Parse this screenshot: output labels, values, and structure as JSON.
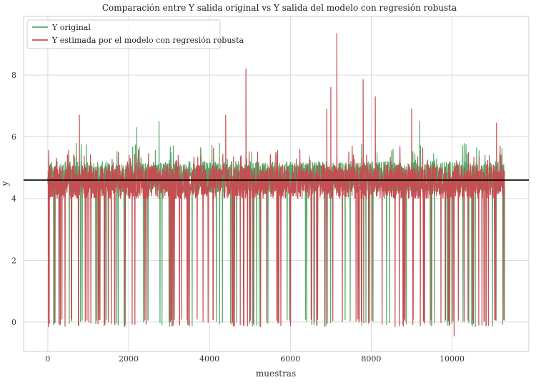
{
  "chart_data": {
    "type": "line",
    "title": "Comparación entre Y salida original vs Y salida del modelo con regresión robusta",
    "xlabel": "muestras",
    "ylabel": "y",
    "xlim": [
      -600,
      11900
    ],
    "ylim": [
      -0.95,
      9.9
    ],
    "x_ticks": [
      0,
      2000,
      4000,
      6000,
      8000,
      10000
    ],
    "y_ticks": [
      0,
      2,
      4,
      6,
      8
    ],
    "x_tick_labels": [
      "0",
      "2000",
      "4000",
      "6000",
      "8000",
      "10000"
    ],
    "y_tick_labels": [
      "0",
      "2",
      "4",
      "6",
      "8"
    ],
    "grid": true,
    "legend_position": "top-left",
    "n_samples": 11300,
    "reference_line": {
      "y": 4.6,
      "color": "#000000"
    },
    "series": [
      {
        "name": "Y original",
        "color": "#55a868",
        "band": [
          4.2,
          5.2
        ],
        "range": [
          -0.1,
          6.5
        ]
      },
      {
        "name": "Y estimada por el modelo con regresión robusta",
        "color": "#c44e52",
        "band": [
          4.0,
          5.1
        ],
        "range": [
          -0.45,
          9.35
        ],
        "spikes": [
          {
            "x": 780,
            "y": 6.7
          },
          {
            "x": 4400,
            "y": 6.7
          },
          {
            "x": 4900,
            "y": 8.2
          },
          {
            "x": 6900,
            "y": 6.9
          },
          {
            "x": 7000,
            "y": 7.6
          },
          {
            "x": 7150,
            "y": 9.35
          },
          {
            "x": 7800,
            "y": 7.85
          },
          {
            "x": 8100,
            "y": 7.3
          },
          {
            "x": 9000,
            "y": 6.9
          },
          {
            "x": 11100,
            "y": 6.45
          },
          {
            "x": 10050,
            "y": -0.45
          }
        ]
      }
    ]
  }
}
